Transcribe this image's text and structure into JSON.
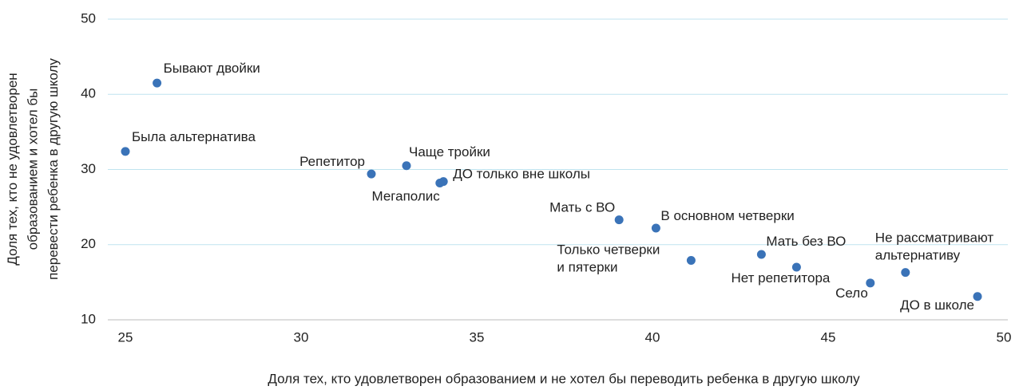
{
  "chart_data": {
    "type": "scatter",
    "x_label": "Доля тех, кто удовлетворен образованием и не хотел бы переводить ребенка в другую школу",
    "y_label": "Доля тех, кто не удовлетворен\nобразованием и хотел бы\nперевести ребенка в другую школу",
    "color": "#3a73b8",
    "series": [
      {
        "labels": [
          "Бывают двойки",
          "Была альтернатива",
          "Репетитор",
          "Чаще тройки",
          "ДО только вне школы",
          "Мегаполис",
          "Мать с ВО",
          "В основном четверки",
          "Только четверки\nи пятерки",
          "Мать без ВО",
          "Нет репетитора",
          "Не рассматривают\nальтернативу",
          "Село",
          "ДО в школе"
        ],
        "x": [
          25.9,
          25.0,
          32.0,
          33.0,
          34.05,
          33.95,
          39.05,
          40.1,
          41.1,
          43.1,
          44.1,
          47.2,
          46.2,
          49.25
        ],
        "values": [
          41.5,
          32.4,
          29.4,
          30.5,
          28.4,
          28.2,
          23.3,
          22.2,
          17.9,
          18.7,
          17.0,
          16.3,
          14.9,
          13.1
        ]
      }
    ],
    "xlim": [
      25,
      50
    ],
    "xticks": [
      25,
      30,
      35,
      40,
      45,
      50
    ],
    "ylim": [
      10,
      50
    ],
    "yticks": [
      10,
      20,
      30,
      40,
      50
    ],
    "grid": true
  }
}
